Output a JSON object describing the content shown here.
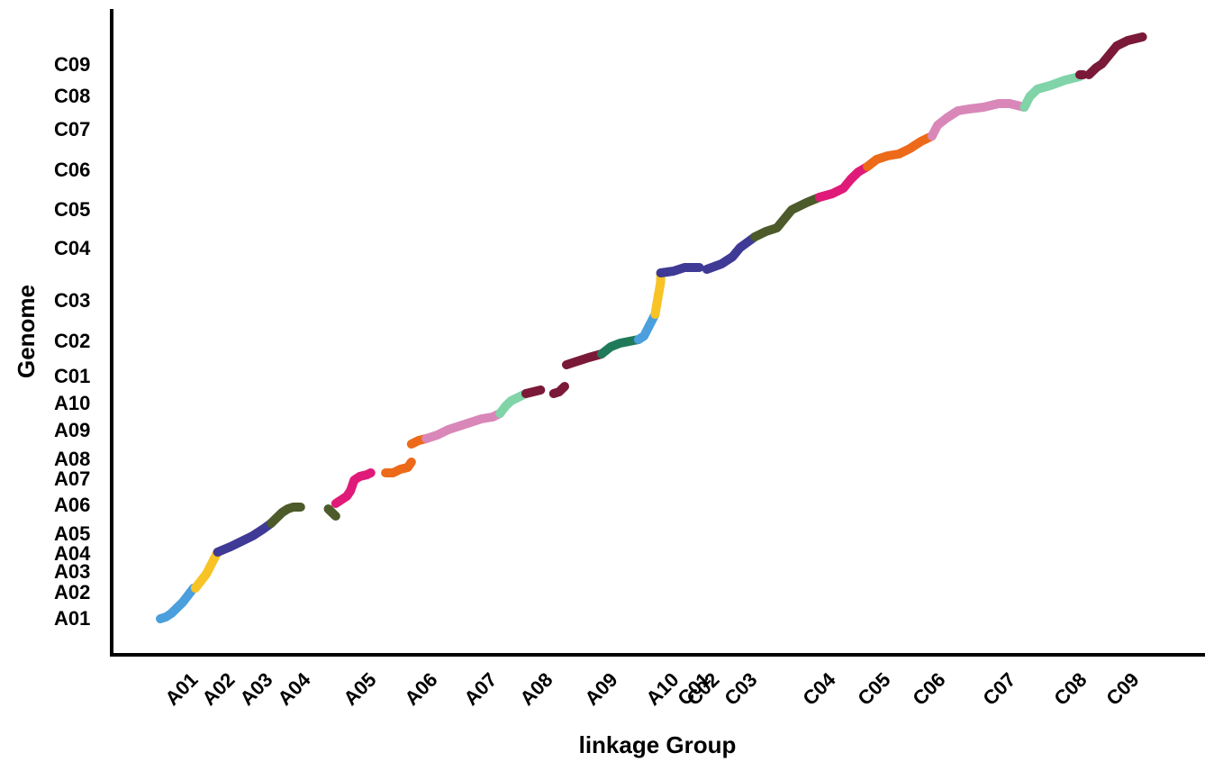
{
  "chart_data": {
    "type": "scatter",
    "title": "",
    "xlabel": "linkage Group",
    "ylabel": "Genome",
    "x_ticks": [
      "A01",
      "A02",
      "A03",
      "A04",
      "A05",
      "A06",
      "A07",
      "A08",
      "A09",
      "A10",
      "C01",
      "C02",
      "C03",
      "C04",
      "C05",
      "C06",
      "C07",
      "C08",
      "C09"
    ],
    "y_ticks": [
      "A01",
      "A02",
      "A03",
      "A04",
      "A05",
      "A06",
      "A07",
      "A08",
      "A09",
      "A10",
      "C01",
      "C02",
      "C03",
      "C04",
      "C05",
      "C06",
      "C07",
      "C08",
      "C09"
    ],
    "grid": false,
    "legend": "none",
    "series": [
      {
        "group": "A01",
        "color": "#4a9fdc",
        "x": [
          0.0,
          0.15,
          0.3,
          0.45,
          0.6,
          0.75,
          0.9
        ],
        "y": [
          0.15,
          0.2,
          0.3,
          0.45,
          0.6,
          0.8,
          1.0
        ]
      },
      {
        "group": "A02",
        "color": "#f7c325",
        "x": [
          0.95,
          1.1,
          1.25,
          1.4,
          1.55
        ],
        "y": [
          1.0,
          1.2,
          1.4,
          1.7,
          2.0
        ]
      },
      {
        "group": "A03",
        "color": "#3f3a96",
        "x": [
          1.55,
          1.9,
          2.2,
          2.5,
          2.8,
          3.0
        ],
        "y": [
          2.0,
          2.15,
          2.3,
          2.45,
          2.65,
          2.8
        ]
      },
      {
        "group": "A04",
        "color": "#4d5a2a",
        "x": [
          3.0,
          3.15,
          3.3,
          3.45,
          3.6,
          3.8
        ],
        "y": [
          2.8,
          2.95,
          3.1,
          3.2,
          3.25,
          3.25
        ]
      },
      {
        "group": "A04",
        "color": "#4d5a2a",
        "x": [
          4.55,
          4.65,
          4.75
        ],
        "y": [
          3.2,
          3.1,
          3.0
        ]
      },
      {
        "group": "A05",
        "color": "#e01a78",
        "x": [
          4.75,
          4.9,
          5.05,
          5.15,
          5.25,
          5.4,
          5.6,
          5.7
        ],
        "y": [
          3.35,
          3.45,
          3.55,
          3.7,
          4.0,
          4.1,
          4.15,
          4.2
        ]
      },
      {
        "group": "A06",
        "color": "#ec6a1a",
        "x": [
          6.1,
          6.3,
          6.5,
          6.7,
          6.8
        ],
        "y": [
          4.2,
          4.2,
          4.3,
          4.35,
          4.5
        ]
      },
      {
        "group": "A06",
        "color": "#ec6a1a",
        "x": [
          6.8,
          7.0,
          7.2
        ],
        "y": [
          5.0,
          5.1,
          5.15
        ]
      },
      {
        "group": "A07",
        "color": "#d987b9",
        "x": [
          7.2,
          7.5,
          7.8,
          8.1,
          8.4,
          8.7,
          9.0,
          9.2
        ],
        "y": [
          5.15,
          5.25,
          5.4,
          5.5,
          5.6,
          5.7,
          5.75,
          5.85
        ]
      },
      {
        "group": "A08",
        "color": "#80d4a8",
        "x": [
          9.2,
          9.35,
          9.5,
          9.7,
          9.9
        ],
        "y": [
          5.85,
          6.05,
          6.2,
          6.3,
          6.4
        ]
      },
      {
        "group": "A08",
        "color": "#7a1a38",
        "x": [
          9.9,
          10.1,
          10.3
        ],
        "y": [
          6.4,
          6.45,
          6.5
        ]
      },
      {
        "group": "A09",
        "color": "#7a1a38",
        "x": [
          10.65,
          10.8,
          10.95
        ],
        "y": [
          6.4,
          6.45,
          6.6
        ]
      },
      {
        "group": "A09",
        "color": "#7a1a38",
        "x": [
          11.0,
          11.3,
          11.6,
          11.95
        ],
        "y": [
          7.2,
          7.3,
          7.4,
          7.5
        ]
      },
      {
        "group": "A10",
        "color": "#1f7a5a",
        "x": [
          11.95,
          12.2,
          12.45,
          12.7,
          12.95
        ],
        "y": [
          7.5,
          7.7,
          7.8,
          7.85,
          7.9
        ]
      },
      {
        "group": "C01",
        "color": "#4a9fdc",
        "x": [
          12.95,
          13.1,
          13.2,
          13.3,
          13.4
        ],
        "y": [
          7.9,
          8.0,
          8.2,
          8.4,
          8.6
        ]
      },
      {
        "group": "C02",
        "color": "#f7c325",
        "x": [
          13.4,
          13.45,
          13.5,
          13.55,
          13.55
        ],
        "y": [
          8.6,
          8.9,
          9.2,
          9.5,
          9.75
        ]
      },
      {
        "group": "C03",
        "color": "#3f3a96",
        "x": [
          13.55,
          13.9,
          14.2,
          14.6
        ],
        "y": [
          9.75,
          9.8,
          9.9,
          9.9
        ]
      },
      {
        "group": "C03",
        "color": "#3f3a96",
        "x": [
          14.8,
          15.2,
          15.5,
          15.7,
          15.9,
          16.1
        ],
        "y": [
          9.85,
          10.0,
          10.2,
          10.45,
          10.6,
          10.75
        ]
      },
      {
        "group": "C04",
        "color": "#4d5a2a",
        "x": [
          16.1,
          16.4,
          16.7,
          16.9,
          17.1,
          17.5,
          17.85
        ],
        "y": [
          10.75,
          10.9,
          11.0,
          11.25,
          11.5,
          11.7,
          11.85
        ]
      },
      {
        "group": "C05",
        "color": "#e01a78",
        "x": [
          17.85,
          18.2,
          18.5,
          18.7,
          18.9,
          19.15
        ],
        "y": [
          11.85,
          11.95,
          12.1,
          12.35,
          12.55,
          12.7
        ]
      },
      {
        "group": "C06",
        "color": "#ec6a1a",
        "x": [
          19.15,
          19.4,
          19.7,
          20.0,
          20.3,
          20.6,
          20.9
        ],
        "y": [
          12.7,
          12.9,
          13.0,
          13.05,
          13.2,
          13.4,
          13.55
        ]
      },
      {
        "group": "C07",
        "color": "#d987b9",
        "x": [
          20.9,
          21.05,
          21.3,
          21.6,
          21.9,
          22.3,
          22.7,
          23.0,
          23.4
        ],
        "y": [
          13.55,
          13.85,
          14.05,
          14.25,
          14.3,
          14.35,
          14.45,
          14.45,
          14.35
        ]
      },
      {
        "group": "C08",
        "color": "#80d4a8",
        "x": [
          23.4,
          23.55,
          23.75,
          24.1,
          24.5,
          24.9
        ],
        "y": [
          14.35,
          14.65,
          14.85,
          14.95,
          15.1,
          15.2
        ]
      },
      {
        "group": "C09",
        "color": "#7a1a38",
        "x": [
          24.9,
          25.0
        ],
        "y": [
          15.25,
          15.25
        ]
      },
      {
        "group": "C09",
        "color": "#7a1a38",
        "x": [
          25.15,
          25.35,
          25.5,
          25.7,
          25.9,
          26.2,
          26.6
        ],
        "y": [
          15.25,
          15.45,
          15.55,
          15.8,
          16.05,
          16.2,
          16.3
        ]
      }
    ]
  }
}
